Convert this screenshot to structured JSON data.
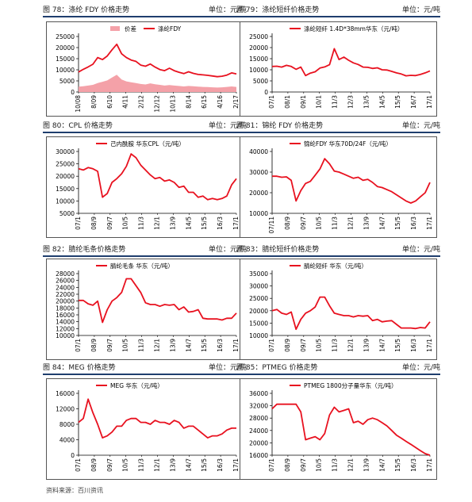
{
  "source_note": "资料来源：百川资讯",
  "colors": {
    "line": "#e8111f",
    "bar": "#f4a1a8",
    "rule": "#1f3e6e"
  },
  "charts": [
    {
      "id": "c78",
      "caption": "图 78：涤纶 FDY 价格走势",
      "unit": "单位：元/吨"
    },
    {
      "id": "c79",
      "caption": "图 79：涤纶短纤价格走势",
      "unit": "单位：元/吨"
    },
    {
      "id": "c80",
      "caption": "图 80：CPL 价格走势",
      "unit": "单位：元/吨"
    },
    {
      "id": "c81",
      "caption": "图 81：锦纶 FDY 价格走势",
      "unit": "单位：元/吨"
    },
    {
      "id": "c82",
      "caption": "图 82：腈纶毛条价格走势",
      "unit": "单位：元/吨"
    },
    {
      "id": "c83",
      "caption": "图 83：腈纶短纤价格走势",
      "unit": "单位：元/吨"
    },
    {
      "id": "c84",
      "caption": "图 84：MEG 价格走势",
      "unit": "单位：元/吨"
    },
    {
      "id": "c85",
      "caption": "图 85：PTMEG 价格走势",
      "unit": "单位：元/吨"
    }
  ],
  "chart_data": [
    {
      "id": "c78",
      "type": "line",
      "title": "",
      "ylim": [
        0,
        25000
      ],
      "yticks": [
        0,
        5000,
        10000,
        15000,
        20000,
        25000
      ],
      "xlabels": [
        "10/08",
        "8/09",
        "6/10",
        "4/11",
        "2/12",
        "12/12",
        "10/13",
        "8/14",
        "6/15",
        "4/16",
        "2/17"
      ],
      "legend": "top-center",
      "series": [
        {
          "name": "涤纶FDY",
          "kind": "line",
          "values": [
            9000,
            10200,
            11300,
            12500,
            15500,
            14600,
            16200,
            19000,
            21500,
            17200,
            15500,
            14400,
            13800,
            12100,
            11600,
            12600,
            11200,
            10100,
            9600,
            10700,
            9600,
            8900,
            8300,
            9100,
            8400,
            7900,
            7700,
            7500,
            7200,
            6900,
            7100,
            7600,
            8600,
            8100
          ]
        },
        {
          "name": "价差",
          "kind": "area",
          "values": [
            2400,
            2600,
            2900,
            3200,
            4000,
            4600,
            5200,
            6500,
            7800,
            5600,
            4800,
            4400,
            4000,
            3600,
            3400,
            3900,
            3500,
            3200,
            2900,
            3100,
            2900,
            2700,
            2500,
            2700,
            2600,
            2400,
            2300,
            2200,
            2100,
            2000,
            2100,
            2300,
            2500,
            2300
          ]
        }
      ]
    },
    {
      "id": "c79",
      "type": "line",
      "title": "",
      "ylim": [
        0,
        25000
      ],
      "yticks": [
        0,
        5000,
        10000,
        15000,
        20000,
        25000
      ],
      "xlabels": [
        "07/1",
        "08/1",
        "09/1",
        "10/1",
        "11/3",
        "12/3",
        "13/5",
        "14/5",
        "15/5",
        "16/7",
        "17/1"
      ],
      "legend": "top-center",
      "series": [
        {
          "name": "涤纶短纤 1.4D*38mm华东（元/吨）",
          "kind": "line",
          "values": [
            11500,
            11600,
            11200,
            12000,
            11500,
            10200,
            11200,
            7400,
            8500,
            9100,
            10800,
            11300,
            12300,
            19500,
            14600,
            15700,
            14300,
            13100,
            12400,
            11200,
            11100,
            10600,
            10900,
            10000,
            9900,
            9300,
            8600,
            8100,
            7300,
            7500,
            7400,
            7900,
            8600,
            9500
          ]
        }
      ]
    },
    {
      "id": "c80",
      "type": "line",
      "title": "",
      "ylim": [
        5000,
        30000
      ],
      "yticks": [
        5000,
        10000,
        15000,
        20000,
        25000,
        30000
      ],
      "xlabels": [
        "07/1",
        "08/9",
        "09/7",
        "10/5",
        "11/3",
        "12/1",
        "13/9",
        "14/5",
        "15/5",
        "16/3",
        "17/1"
      ],
      "legend": "top-center",
      "series": [
        {
          "name": "己内酰胺 华东CPL（元/吨）",
          "kind": "line",
          "values": [
            23000,
            22500,
            23500,
            23000,
            22000,
            11500,
            13000,
            17500,
            19000,
            21000,
            24000,
            29000,
            27500,
            24500,
            22500,
            20500,
            19000,
            19500,
            18000,
            18500,
            17500,
            15500,
            16000,
            13500,
            13500,
            11500,
            12000,
            10500,
            11000,
            10500,
            11000,
            12000,
            16500,
            19000
          ]
        }
      ]
    },
    {
      "id": "c81",
      "type": "line",
      "title": "",
      "ylim": [
        10000,
        40000
      ],
      "yticks": [
        10000,
        20000,
        30000,
        40000
      ],
      "xlabels": [
        "07/11",
        "08/9",
        "09/7",
        "10/5",
        "11/3",
        "12/1",
        "13/9",
        "14/7",
        "15/5",
        "16/3",
        "17/1"
      ],
      "legend": "top-center",
      "series": [
        {
          "name": "锦纶FDY 华东70D/24F（元/吨）",
          "kind": "line",
          "values": [
            28000,
            28000,
            27500,
            27700,
            26000,
            16000,
            21000,
            24500,
            25500,
            28500,
            31500,
            36500,
            34000,
            30500,
            30000,
            29000,
            28000,
            27000,
            27500,
            26000,
            26500,
            25000,
            23000,
            22500,
            21500,
            20500,
            19000,
            17500,
            16000,
            15000,
            16000,
            18000,
            20000,
            25000
          ]
        }
      ]
    },
    {
      "id": "c82",
      "type": "line",
      "title": "",
      "ylim": [
        10000,
        28000
      ],
      "yticks": [
        10000,
        12000,
        14000,
        16000,
        18000,
        20000,
        22000,
        24000,
        26000,
        28000
      ],
      "xlabels": [
        "07/1",
        "08/9",
        "09/7",
        "10/5",
        "11/3",
        "12/1",
        "13/9",
        "14/7",
        "15/5",
        "16/3",
        "17/1"
      ],
      "legend": "top-center",
      "series": [
        {
          "name": "腈纶毛条 华东（元/吨）",
          "kind": "line",
          "values": [
            20200,
            20200,
            19200,
            18800,
            20000,
            13800,
            17500,
            20000,
            21000,
            22500,
            26500,
            26500,
            24500,
            22500,
            19500,
            19000,
            19000,
            18500,
            19000,
            18800,
            19000,
            17500,
            18300,
            16800,
            17000,
            17500,
            15000,
            14800,
            14800,
            14800,
            14500,
            15000,
            15000,
            16500
          ]
        }
      ]
    },
    {
      "id": "c83",
      "type": "line",
      "title": "",
      "ylim": [
        10000,
        35000
      ],
      "yticks": [
        10000,
        15000,
        20000,
        25000,
        30000,
        35000
      ],
      "xlabels": [
        "07/1",
        "08/9",
        "09/7",
        "10/5",
        "11/3",
        "12/1",
        "13/9",
        "14/7",
        "15/5",
        "16/3",
        "17/1"
      ],
      "legend": "top-center",
      "series": [
        {
          "name": "腈纶短纤 华东（元/吨）",
          "kind": "line",
          "values": [
            20000,
            20500,
            19000,
            18500,
            19500,
            12500,
            16500,
            19000,
            20000,
            21500,
            25500,
            25500,
            22000,
            19000,
            18500,
            18000,
            18000,
            17500,
            18000,
            17800,
            18000,
            16000,
            16500,
            15500,
            15800,
            16000,
            14500,
            13000,
            13000,
            13000,
            12800,
            13200,
            13000,
            15500
          ]
        }
      ]
    },
    {
      "id": "c84",
      "type": "line",
      "title": "",
      "ylim": [
        0,
        16000
      ],
      "yticks": [
        0,
        4000,
        8000,
        12000,
        16000
      ],
      "xlabels": [
        "07/1",
        "08/9",
        "09/7",
        "10/5",
        "11/3",
        "12/1",
        "13/9",
        "14/7",
        "15/5",
        "16/3",
        "17/1"
      ],
      "legend": "top-center",
      "series": [
        {
          "name": "MEG 华东（元/吨）",
          "kind": "line",
          "values": [
            8500,
            9500,
            14500,
            11000,
            8000,
            4500,
            5000,
            6000,
            7500,
            7500,
            9000,
            9500,
            9500,
            8500,
            8500,
            8000,
            9000,
            8500,
            8500,
            8000,
            9000,
            8500,
            7000,
            7500,
            7500,
            6500,
            5500,
            4500,
            5000,
            5000,
            5500,
            6500,
            7000,
            7000
          ]
        }
      ]
    },
    {
      "id": "c85",
      "type": "line",
      "title": "",
      "ylim": [
        16000,
        36000
      ],
      "yticks": [
        16000,
        20000,
        24000,
        28000,
        32000,
        36000
      ],
      "xlabels": [
        "07/1",
        "08/9",
        "09/7",
        "10/5",
        "11/3",
        "12/1",
        "13/9",
        "14/7",
        "15/5",
        "16/3",
        "17/1"
      ],
      "legend": "top-center",
      "series": [
        {
          "name": "PTMEG 1800分子量华东（元/吨）",
          "kind": "line",
          "values": [
            31000,
            32500,
            32500,
            32500,
            32500,
            32500,
            30000,
            21000,
            21500,
            22000,
            21000,
            23000,
            29000,
            31500,
            30000,
            30500,
            31000,
            26500,
            27000,
            26000,
            27500,
            28000,
            27500,
            26500,
            25500,
            24000,
            22500,
            21500,
            20500,
            19500,
            18500,
            17500,
            16500,
            16000
          ]
        }
      ]
    }
  ]
}
